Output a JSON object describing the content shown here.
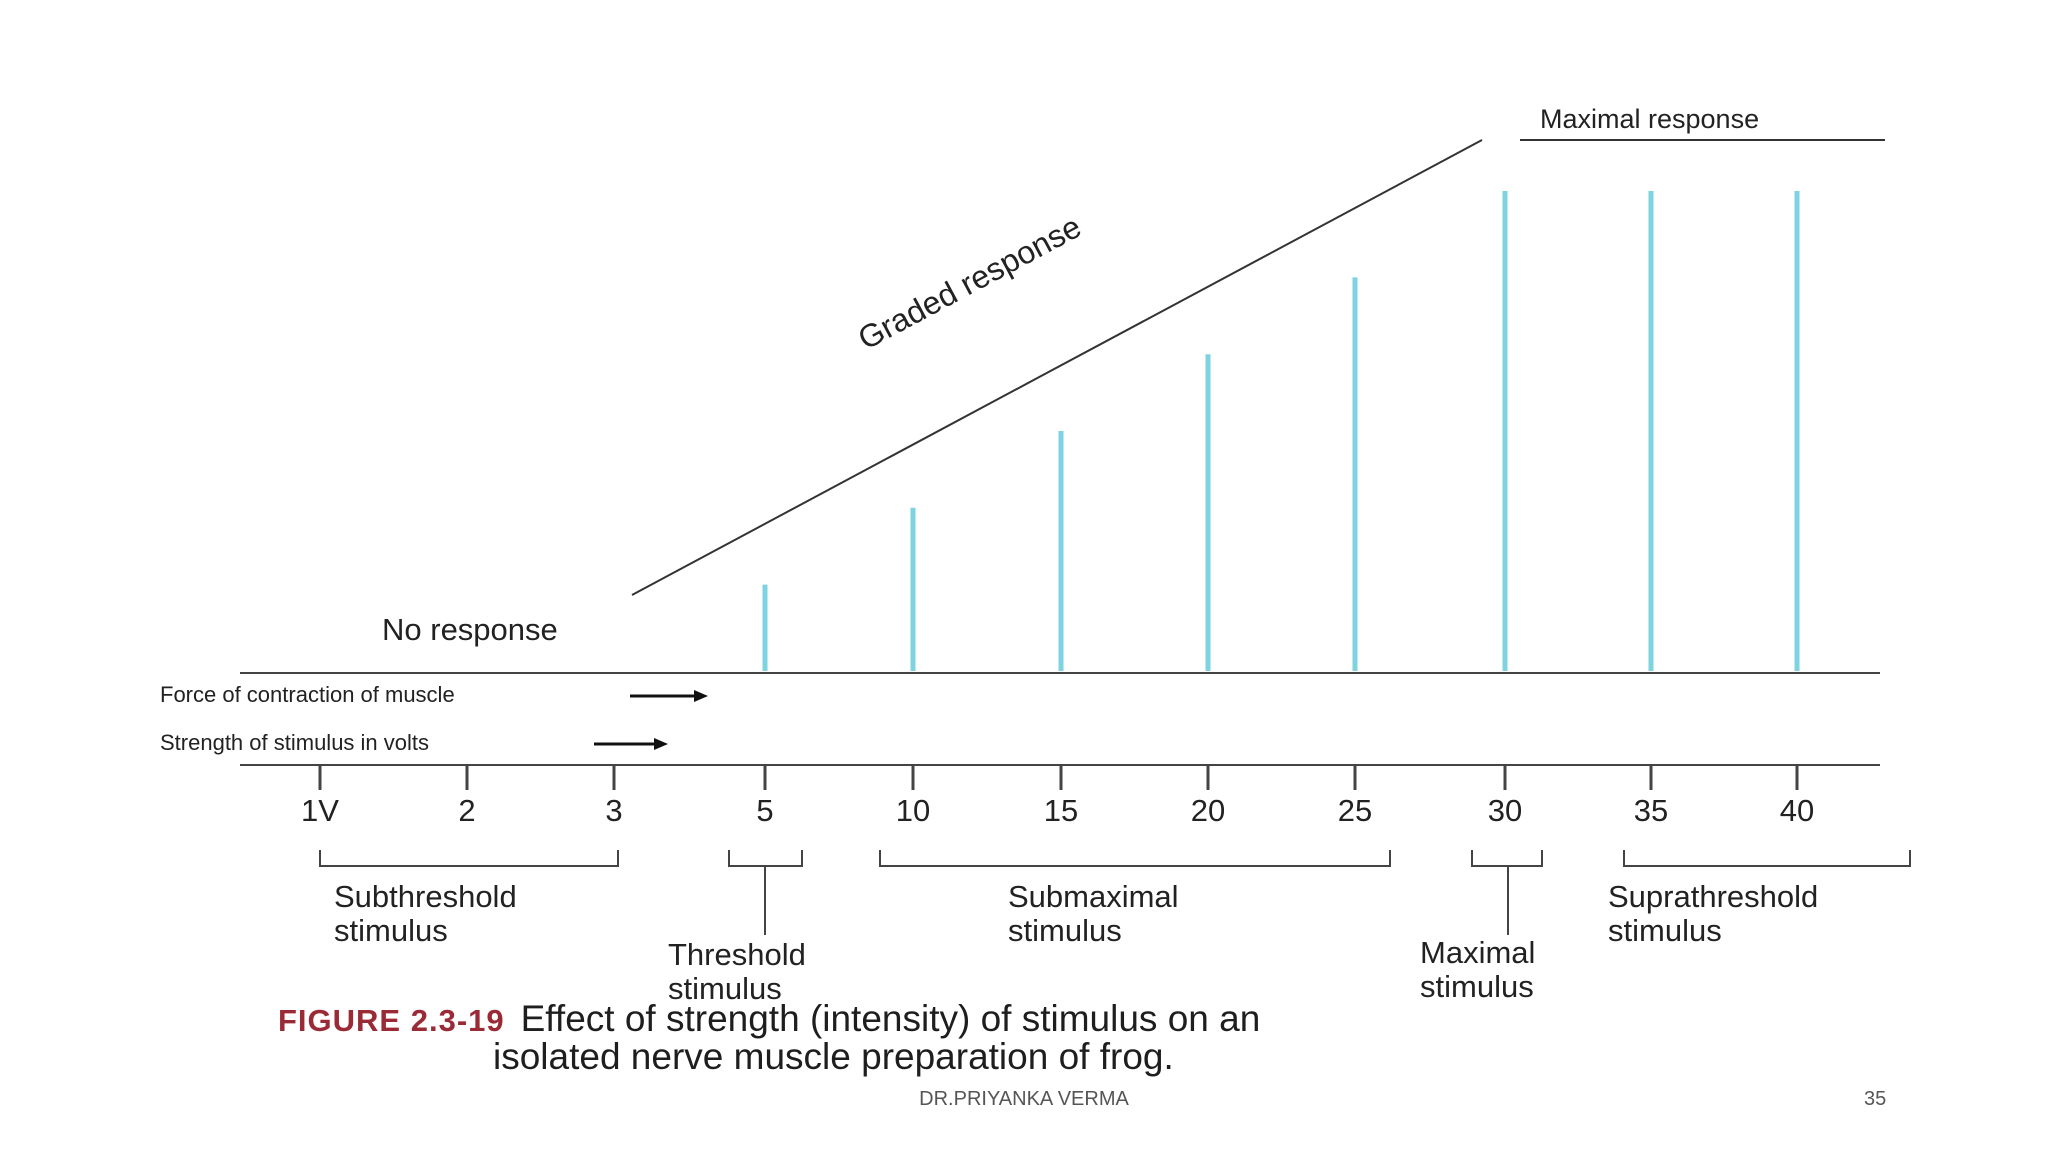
{
  "diagram": {
    "top_label": "Maximal response",
    "graded_label": "Graded response",
    "no_response_label": "No response",
    "force_axis_label": "Force of contraction of muscle",
    "strength_axis_label": "Strength of stimulus in volts",
    "ticks": [
      "1V",
      "2",
      "3",
      "5",
      "10",
      "15",
      "20",
      "25",
      "30",
      "35",
      "40"
    ],
    "responses": [
      {
        "stimulus": "5",
        "level": 0.18
      },
      {
        "stimulus": "10",
        "level": 0.34
      },
      {
        "stimulus": "15",
        "level": 0.5
      },
      {
        "stimulus": "20",
        "level": 0.66
      },
      {
        "stimulus": "25",
        "level": 0.82
      },
      {
        "stimulus": "30",
        "level": 1.0
      },
      {
        "stimulus": "35",
        "level": 1.0
      },
      {
        "stimulus": "40",
        "level": 1.0
      }
    ],
    "response_color": "#7dd3df",
    "groups": [
      {
        "name": "subthreshold",
        "text": "Subthreshold\nstimulus"
      },
      {
        "name": "threshold",
        "text": "Threshold\nstimulus"
      },
      {
        "name": "submaximal",
        "text": "Submaximal\nstimulus"
      },
      {
        "name": "maximal",
        "text": "Maximal\nstimulus"
      },
      {
        "name": "suprathreshold",
        "text": "Suprathreshold\nstimulus"
      }
    ]
  },
  "caption": {
    "figure_label": "FIGURE 2.3-19",
    "line1": "Effect of strength (intensity) of stimulus on an",
    "line2": "isolated nerve muscle preparation of frog."
  },
  "footer": {
    "author": "DR.PRIYANKA VERMA",
    "page": "35"
  }
}
